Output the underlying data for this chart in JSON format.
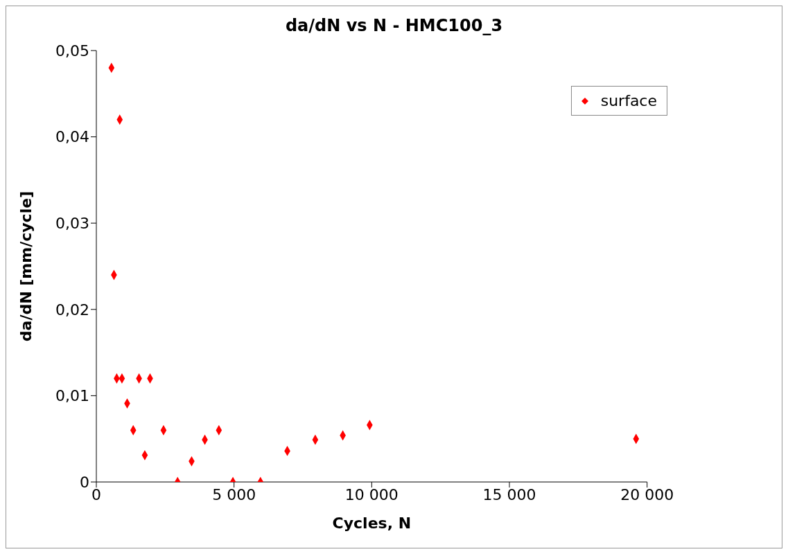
{
  "chart_data": {
    "type": "scatter",
    "title": "da/dN vs N - HMC100_3",
    "xlabel": "Cycles, N",
    "ylabel": "da/dN [mm/cycle]",
    "x": [
      550,
      640,
      740,
      850,
      930,
      1120,
      1340,
      1550,
      1760,
      1950,
      2440,
      2950,
      3460,
      3940,
      4450,
      4960,
      5960,
      6935,
      7950,
      8950,
      9925,
      19600
    ],
    "series": [
      {
        "name": "surface",
        "color": "#ff0000",
        "values": [
          0.048,
          0.024,
          0.012,
          0.042,
          0.012,
          0.0091,
          0.006,
          0.012,
          0.0031,
          0.012,
          0.006,
          0,
          0.0024,
          0.0049,
          0.006,
          0,
          0,
          0.0036,
          0.0049,
          0.0054,
          0.0066,
          0.005
        ]
      }
    ],
    "xlim": [
      0,
      20000
    ],
    "xticks": [
      0,
      {
        "value": 5000,
        "label": "5 000"
      },
      {
        "value": 10000,
        "label": "10 000"
      },
      {
        "value": 15000,
        "label": "15 000"
      },
      {
        "value": 20000,
        "label": "20 000"
      }
    ],
    "ylim": [
      0,
      0.05
    ],
    "yticks": [
      0,
      {
        "value": 0.01,
        "label": "0,01"
      },
      {
        "value": 0.02,
        "label": "0,02"
      },
      {
        "value": 0.03,
        "label": "0,03"
      },
      {
        "value": 0.04,
        "label": "0,04"
      },
      {
        "value": 0.05,
        "label": "0,05"
      }
    ],
    "legend": "top right",
    "marker": "diamond",
    "grid": false
  }
}
